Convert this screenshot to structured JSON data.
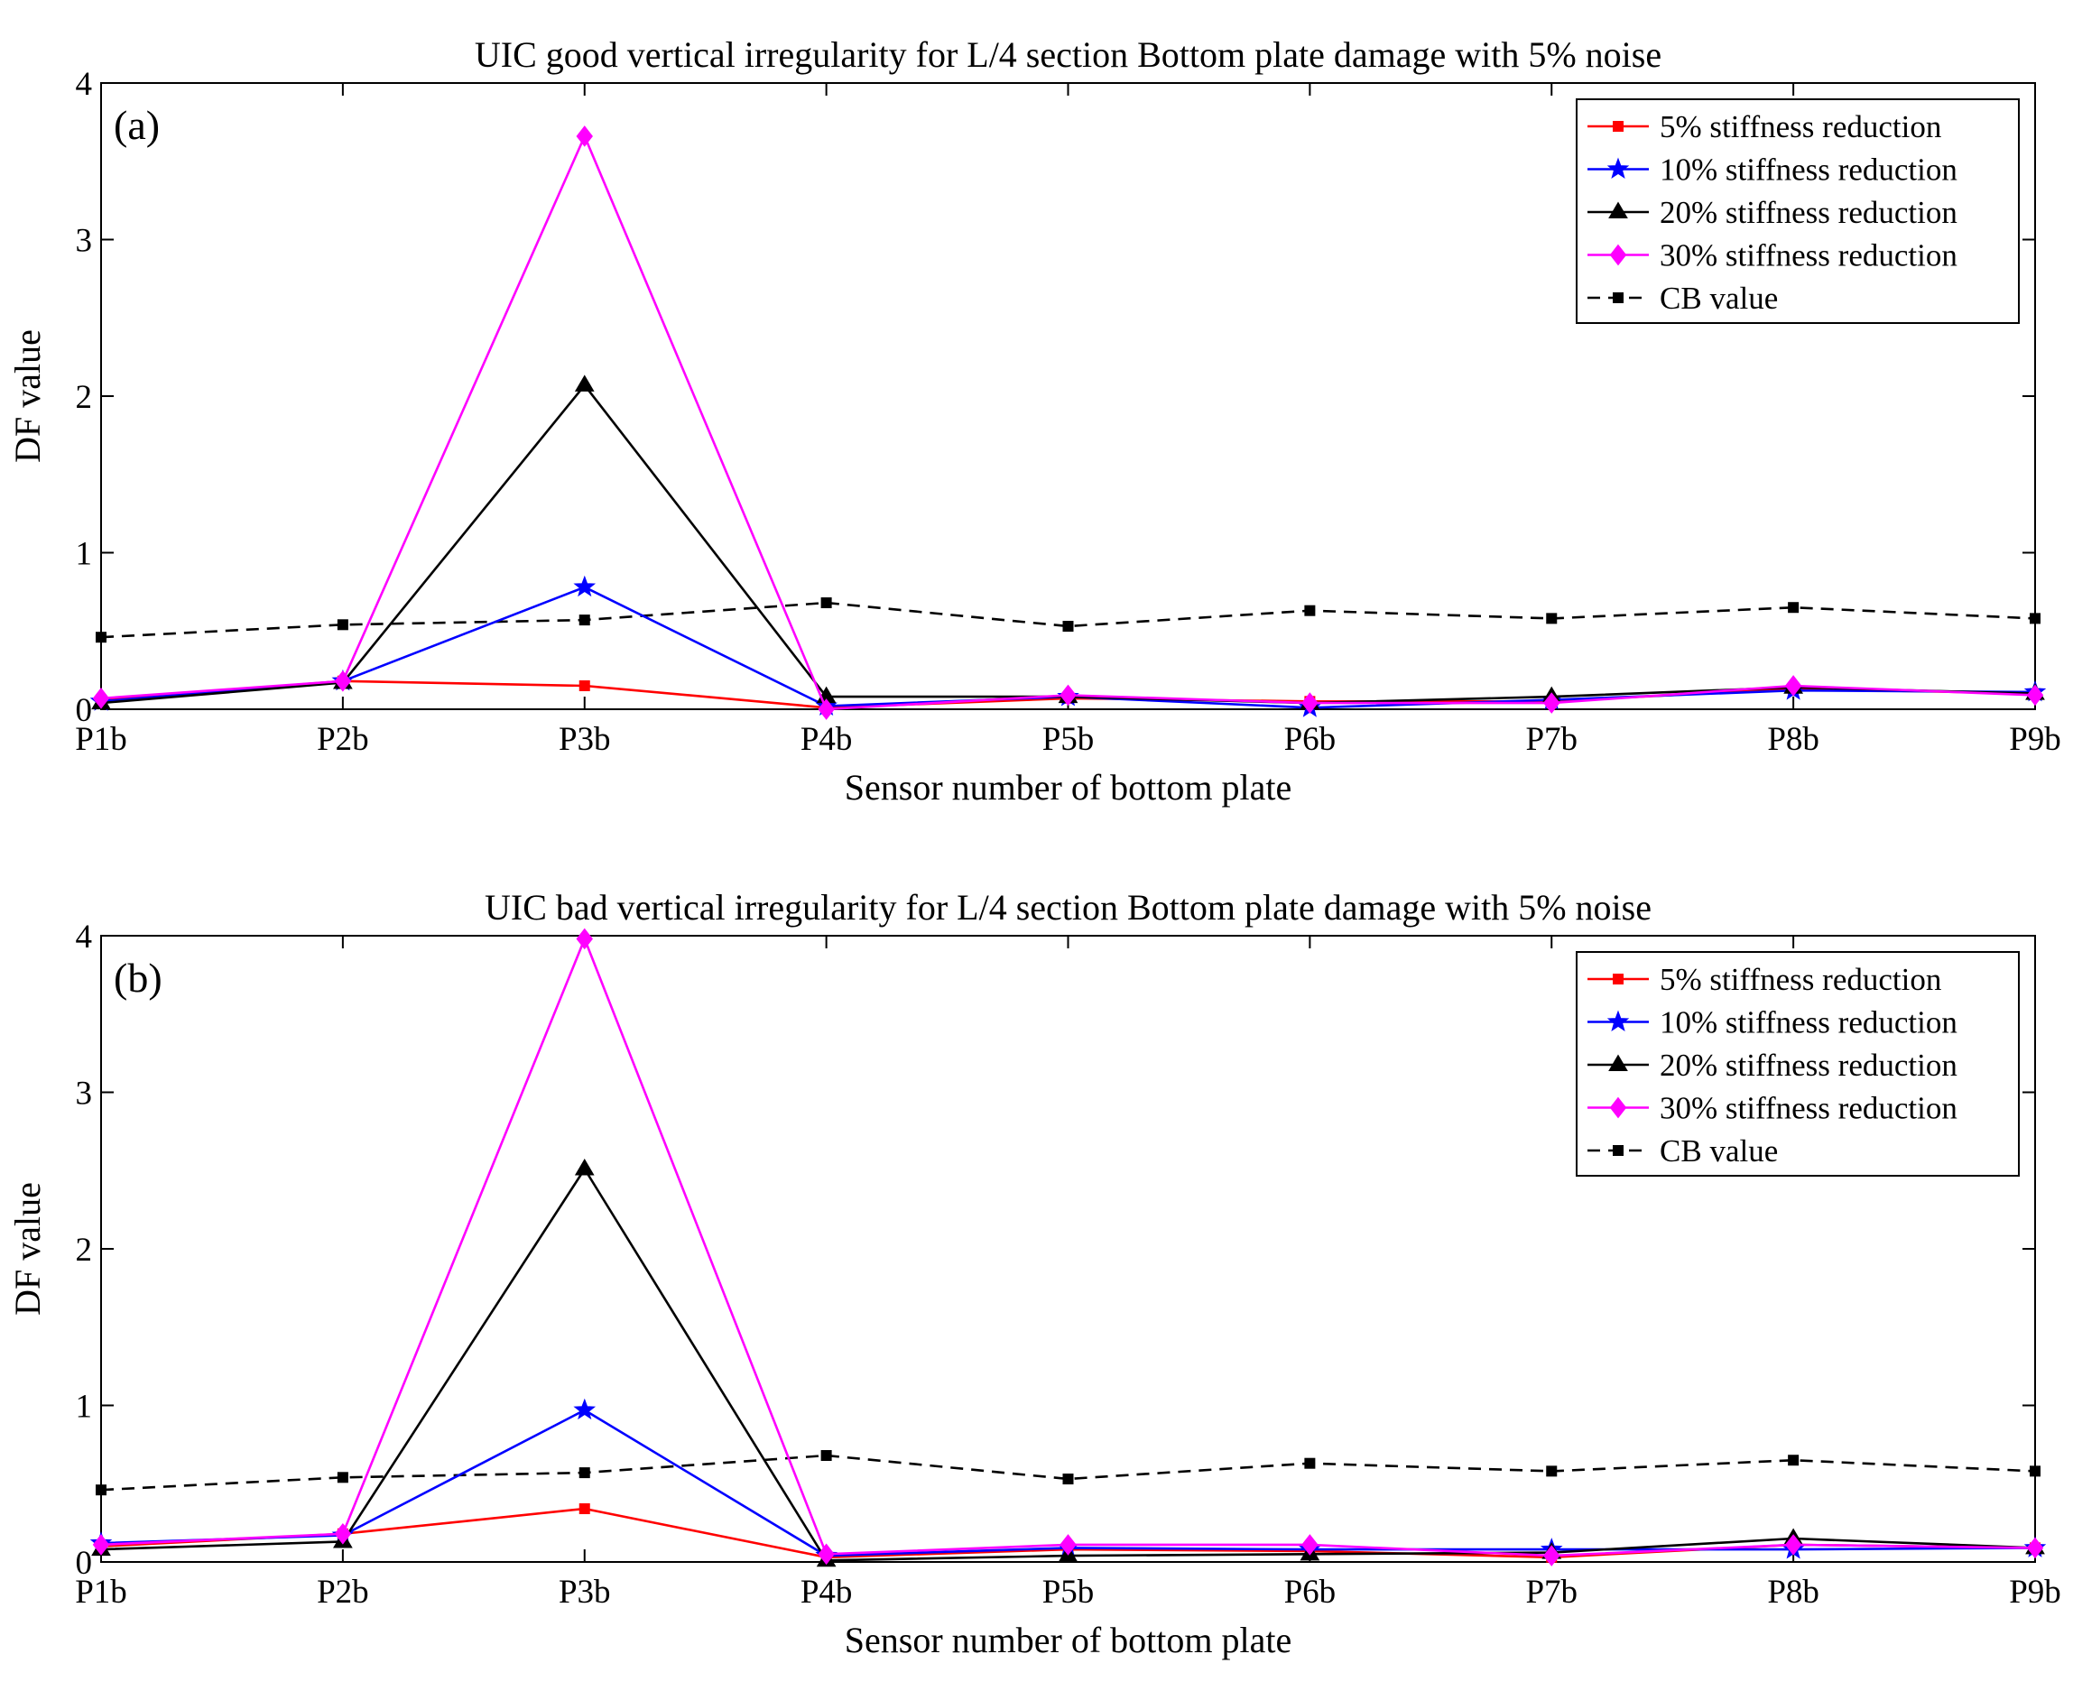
{
  "chart_data": [
    {
      "type": "line",
      "panel_label": "(a)",
      "title": "UIC good vertical irregularity for L/4 section Bottom plate damage with 5% noise",
      "xlabel": "Sensor number of  bottom plate",
      "ylabel": "DF value",
      "categories": [
        "P1b",
        "P2b",
        "P3b",
        "P4b",
        "P5b",
        "P6b",
        "P7b",
        "P8b",
        "P9b"
      ],
      "ylim": [
        0,
        4
      ],
      "yticks": [
        "0",
        "1",
        "2",
        "3",
        "4"
      ],
      "legend_position": "top-right",
      "series": [
        {
          "name": "5% stiffness reduction",
          "color": "#ff0000",
          "marker": "square",
          "dash": false,
          "values": [
            0.06,
            0.18,
            0.15,
            0.01,
            0.07,
            0.05,
            0.05,
            0.13,
            0.1
          ]
        },
        {
          "name": "10% stiffness reduction",
          "color": "#0000ff",
          "marker": "star",
          "dash": false,
          "values": [
            0.05,
            0.18,
            0.78,
            0.02,
            0.08,
            0.01,
            0.06,
            0.12,
            0.11
          ]
        },
        {
          "name": "20% stiffness reduction",
          "color": "#000000",
          "marker": "triangle",
          "dash": false,
          "values": [
            0.04,
            0.17,
            2.07,
            0.08,
            0.08,
            0.04,
            0.08,
            0.14,
            0.1
          ]
        },
        {
          "name": "30% stiffness reduction",
          "color": "#ff00ff",
          "marker": "diamond",
          "dash": false,
          "values": [
            0.07,
            0.18,
            3.66,
            0.0,
            0.09,
            0.04,
            0.04,
            0.15,
            0.09
          ]
        },
        {
          "name": "CB value",
          "color": "#000000",
          "marker": "square",
          "dash": true,
          "values": [
            0.46,
            0.54,
            0.57,
            0.68,
            0.53,
            0.63,
            0.58,
            0.65,
            0.58
          ]
        }
      ]
    },
    {
      "type": "line",
      "panel_label": "(b)",
      "title": "UIC bad vertical irregularity for L/4 section Bottom plate damage with 5% noise",
      "xlabel": "Sensor number of  bottom plate",
      "ylabel": "DF value",
      "categories": [
        "P1b",
        "P2b",
        "P3b",
        "P4b",
        "P5b",
        "P6b",
        "P7b",
        "P8b",
        "P9b"
      ],
      "ylim": [
        0,
        4
      ],
      "yticks": [
        "0",
        "1",
        "2",
        "3",
        "4"
      ],
      "legend_position": "top-right",
      "series": [
        {
          "name": "5% stiffness reduction",
          "color": "#ff0000",
          "marker": "square",
          "dash": false,
          "values": [
            0.1,
            0.18,
            0.34,
            0.03,
            0.08,
            0.07,
            0.03,
            0.11,
            0.09
          ]
        },
        {
          "name": "10% stiffness reduction",
          "color": "#0000ff",
          "marker": "star",
          "dash": false,
          "values": [
            0.12,
            0.17,
            0.97,
            0.04,
            0.09,
            0.08,
            0.08,
            0.08,
            0.09
          ]
        },
        {
          "name": "20% stiffness reduction",
          "color": "#000000",
          "marker": "triangle",
          "dash": false,
          "values": [
            0.08,
            0.13,
            2.51,
            0.01,
            0.04,
            0.05,
            0.06,
            0.15,
            0.09
          ]
        },
        {
          "name": "30% stiffness reduction",
          "color": "#ff00ff",
          "marker": "diamond",
          "dash": false,
          "values": [
            0.11,
            0.18,
            3.98,
            0.05,
            0.11,
            0.11,
            0.04,
            0.11,
            0.09
          ]
        },
        {
          "name": "CB value",
          "color": "#000000",
          "marker": "square",
          "dash": true,
          "values": [
            0.46,
            0.54,
            0.57,
            0.68,
            0.53,
            0.63,
            0.58,
            0.65,
            0.58
          ]
        }
      ]
    }
  ]
}
